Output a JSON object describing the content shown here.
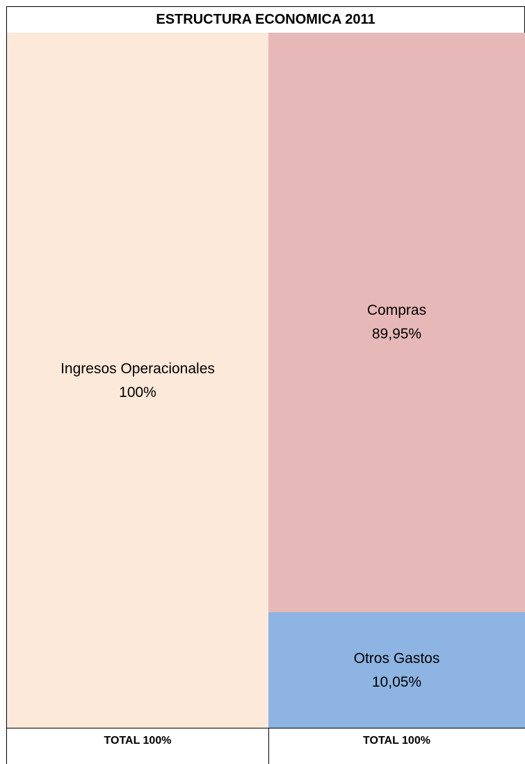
{
  "title": "ESTRUCTURA ECONOMICA 2011",
  "columns": [
    {
      "blocks": [
        {
          "label": "Ingresos Operacionales",
          "value": "100%"
        }
      ],
      "total": "TOTAL 100%"
    },
    {
      "blocks": [
        {
          "label": "Compras",
          "value": "89,95%"
        },
        {
          "label": "Otros Gastos",
          "value": "10,05%"
        }
      ],
      "total": "TOTAL 100%"
    }
  ]
}
